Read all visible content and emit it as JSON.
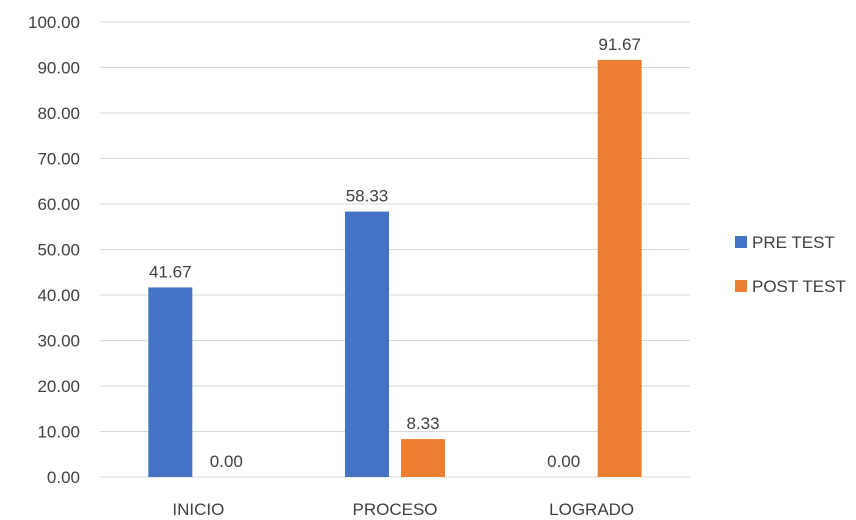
{
  "chart_data": {
    "type": "bar",
    "categories": [
      "INICIO",
      "PROCESO",
      "LOGRADO"
    ],
    "series": [
      {
        "name": "PRE TEST",
        "color": "#4472C4",
        "values": [
          41.67,
          58.33,
          0.0
        ],
        "labels": [
          "41.67",
          "58.33",
          "0.00"
        ]
      },
      {
        "name": "POST TEST",
        "color": "#ED7D31",
        "values": [
          0.0,
          8.33,
          91.67
        ],
        "labels": [
          "0.00",
          "8.33",
          "91.67"
        ]
      }
    ],
    "y_ticks": [
      "0.00",
      "10.00",
      "20.00",
      "30.00",
      "40.00",
      "50.00",
      "60.00",
      "70.00",
      "80.00",
      "90.00",
      "100.00"
    ],
    "ylim": [
      0,
      100
    ],
    "grid": true,
    "legend_position": "right",
    "title": "",
    "xlabel": "",
    "ylabel": ""
  }
}
